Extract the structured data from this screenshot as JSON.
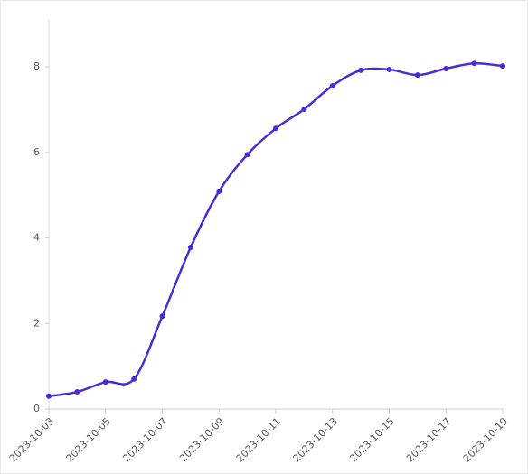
{
  "chart_data": {
    "type": "line",
    "x": [
      "2023-10-03",
      "2023-10-04",
      "2023-10-05",
      "2023-10-06",
      "2023-10-07",
      "2023-10-08",
      "2023-10-09",
      "2023-10-10",
      "2023-10-11",
      "2023-10-12",
      "2023-10-13",
      "2023-10-14",
      "2023-10-15",
      "2023-10-16",
      "2023-10-17",
      "2023-10-18",
      "2023-10-19"
    ],
    "series": [
      {
        "color": "#4b2ad8",
        "values": [
          0.3,
          0.4,
          0.63,
          0.7,
          2.17,
          3.78,
          5.09,
          5.95,
          6.56,
          7.01,
          7.56,
          7.92,
          7.94,
          7.81,
          7.96,
          8.08,
          8.02
        ]
      }
    ],
    "xlim": [
      "2023-10-03",
      "2023-10-19"
    ],
    "xticks": [
      "2023-10-03",
      "2023-10-05",
      "2023-10-07",
      "2023-10-09",
      "2023-10-11",
      "2023-10-13",
      "2023-10-15",
      "2023-10-17",
      "2023-10-19"
    ],
    "ylim": [
      0,
      9.1
    ],
    "yticks": [
      0,
      2,
      4,
      6,
      8
    ],
    "grid": false
  }
}
